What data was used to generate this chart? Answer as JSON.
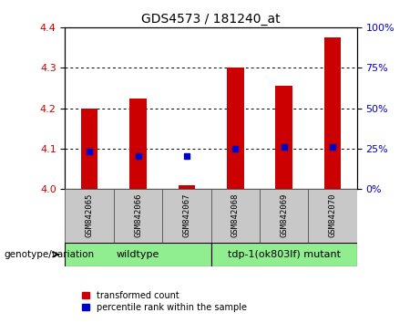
{
  "title": "GDS4573 / 181240_at",
  "categories": [
    "GSM842065",
    "GSM842066",
    "GSM842067",
    "GSM842068",
    "GSM842069",
    "GSM842070"
  ],
  "red_values": [
    4.2,
    4.225,
    4.01,
    4.3,
    4.255,
    4.375
  ],
  "blue_values": [
    4.093,
    4.082,
    4.082,
    4.1,
    4.105,
    4.105
  ],
  "ylim_left": [
    4.0,
    4.4
  ],
  "ylim_right": [
    0,
    100
  ],
  "yticks_left": [
    4.0,
    4.1,
    4.2,
    4.3,
    4.4
  ],
  "yticks_right": [
    0,
    25,
    50,
    75,
    100
  ],
  "left_color": "#cc0000",
  "right_color": "#0000cc",
  "blue_square_color": "#0000cc",
  "red_bar_color": "#cc0000",
  "wildtype_label": "wildtype",
  "mutant_label": "tdp-1(ok803lf) mutant",
  "wildtype_count": 3,
  "mutant_count": 3,
  "genotype_label": "genotype/variation",
  "legend_red": "transformed count",
  "legend_blue": "percentile rank within the sample",
  "bar_width": 0.35,
  "label_bg": "#c8c8c8",
  "geno_bg": "#90EE90",
  "geno_border": "#333333"
}
